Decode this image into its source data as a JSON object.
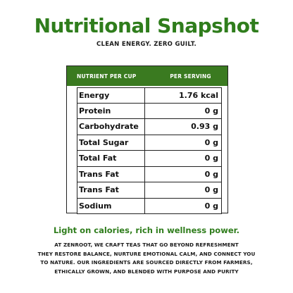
{
  "title": "Nutritional Snapshot",
  "subtitle": "CLEAN ENERGY. ZERO GUILT.",
  "table": {
    "header": {
      "nutrient": "NUTRIENT PER CUP",
      "serving": "PER SERVING"
    },
    "rows": [
      {
        "name": "Energy",
        "value": "1.76  kcal"
      },
      {
        "name": "Protein",
        "value": "0 g"
      },
      {
        "name": "Carbohydrate",
        "value": "0.93 g"
      },
      {
        "name": "Total Sugar",
        "value": "0 g"
      },
      {
        "name": "Total Fat",
        "value": "0 g"
      },
      {
        "name": "Trans Fat",
        "value": "0 g"
      },
      {
        "name": "Trans Fat",
        "value": "0 g"
      },
      {
        "name": "Sodium",
        "value": "0 g"
      }
    ]
  },
  "tagline": "Light on calories, rich in wellness power.",
  "description": [
    "AT ZENROOT, WE CRAFT TEAS THAT GO BEYOND REFRESHMENT",
    "THEY RESTORE BALANCE, NURTURE EMOTIONAL CALM, AND CONNECT YOU",
    "TO NATURE. OUR INGREDIENTS ARE SOURCED DIRECTLY FROM FARMERS,",
    "ETHICALLY GROWN, AND BLENDED WITH PURPOSE AND PURITY"
  ],
  "colors": {
    "accent": "#2f7d1c",
    "header_bg": "#3a7a20"
  }
}
